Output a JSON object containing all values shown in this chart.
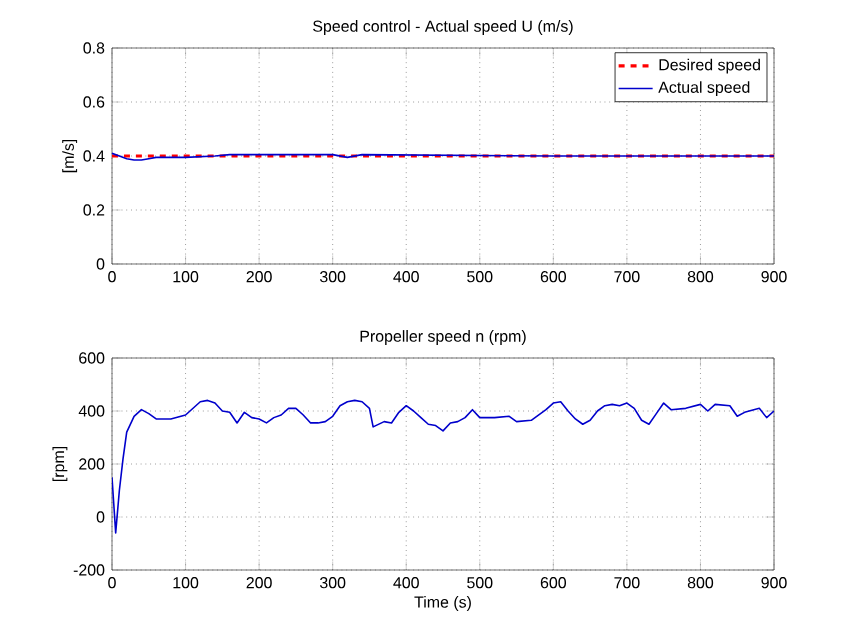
{
  "chart_data": [
    {
      "type": "line",
      "title": "Speed control - Actual speed U (m/s)",
      "ylabel": "[m/s]",
      "xlim": [
        0,
        900
      ],
      "ylim": [
        0,
        0.8
      ],
      "xticks": [
        0,
        100,
        200,
        300,
        400,
        500,
        600,
        700,
        800,
        900
      ],
      "yticks": [
        0,
        0.2,
        0.4,
        0.6,
        0.8
      ],
      "grid": true,
      "legend": "top right",
      "series": [
        {
          "name": "Desired speed",
          "color": "#ff0000",
          "line_style": "dashed",
          "x": [
            0,
            900
          ],
          "values": [
            0.4,
            0.4
          ]
        },
        {
          "name": "Actual speed",
          "color": "#0000cc",
          "line_style": "solid",
          "x": [
            0,
            10,
            20,
            30,
            40,
            50,
            60,
            100,
            140,
            160,
            300,
            320,
            340,
            600,
            900
          ],
          "values": [
            0.41,
            0.4,
            0.39,
            0.385,
            0.385,
            0.39,
            0.395,
            0.395,
            0.4,
            0.405,
            0.405,
            0.395,
            0.405,
            0.4,
            0.4
          ]
        }
      ]
    },
    {
      "type": "line",
      "title": "Propeller speed n (rpm)",
      "xlabel": "Time (s)",
      "ylabel": "[rpm]",
      "xlim": [
        0,
        900
      ],
      "ylim": [
        -200,
        600
      ],
      "xticks": [
        0,
        100,
        200,
        300,
        400,
        500,
        600,
        700,
        800,
        900
      ],
      "yticks": [
        -200,
        0,
        200,
        400,
        600
      ],
      "grid": true,
      "series": [
        {
          "color": "#0000cc",
          "line_style": "solid",
          "x": [
            0,
            5,
            10,
            15,
            20,
            30,
            40,
            50,
            60,
            80,
            100,
            110,
            120,
            130,
            140,
            150,
            160,
            170,
            180,
            190,
            200,
            210,
            220,
            230,
            240,
            250,
            260,
            270,
            280,
            290,
            300,
            310,
            320,
            330,
            340,
            350,
            355,
            370,
            380,
            390,
            400,
            410,
            420,
            430,
            440,
            450,
            460,
            470,
            480,
            490,
            500,
            520,
            540,
            550,
            570,
            590,
            600,
            610,
            620,
            630,
            640,
            650,
            660,
            670,
            680,
            690,
            700,
            710,
            720,
            730,
            740,
            750,
            760,
            780,
            800,
            810,
            820,
            840,
            850,
            860,
            880,
            890,
            900
          ],
          "values": [
            150,
            -60,
            100,
            220,
            320,
            380,
            405,
            390,
            370,
            370,
            385,
            410,
            435,
            440,
            430,
            400,
            395,
            355,
            395,
            375,
            370,
            355,
            375,
            385,
            410,
            410,
            385,
            355,
            355,
            360,
            380,
            420,
            435,
            440,
            435,
            410,
            340,
            360,
            355,
            395,
            420,
            400,
            375,
            350,
            345,
            325,
            355,
            360,
            375,
            405,
            375,
            375,
            380,
            360,
            365,
            405,
            430,
            435,
            400,
            370,
            350,
            365,
            400,
            420,
            425,
            420,
            430,
            410,
            365,
            350,
            390,
            430,
            405,
            410,
            425,
            400,
            425,
            420,
            380,
            395,
            410,
            375,
            400
          ]
        }
      ]
    }
  ]
}
